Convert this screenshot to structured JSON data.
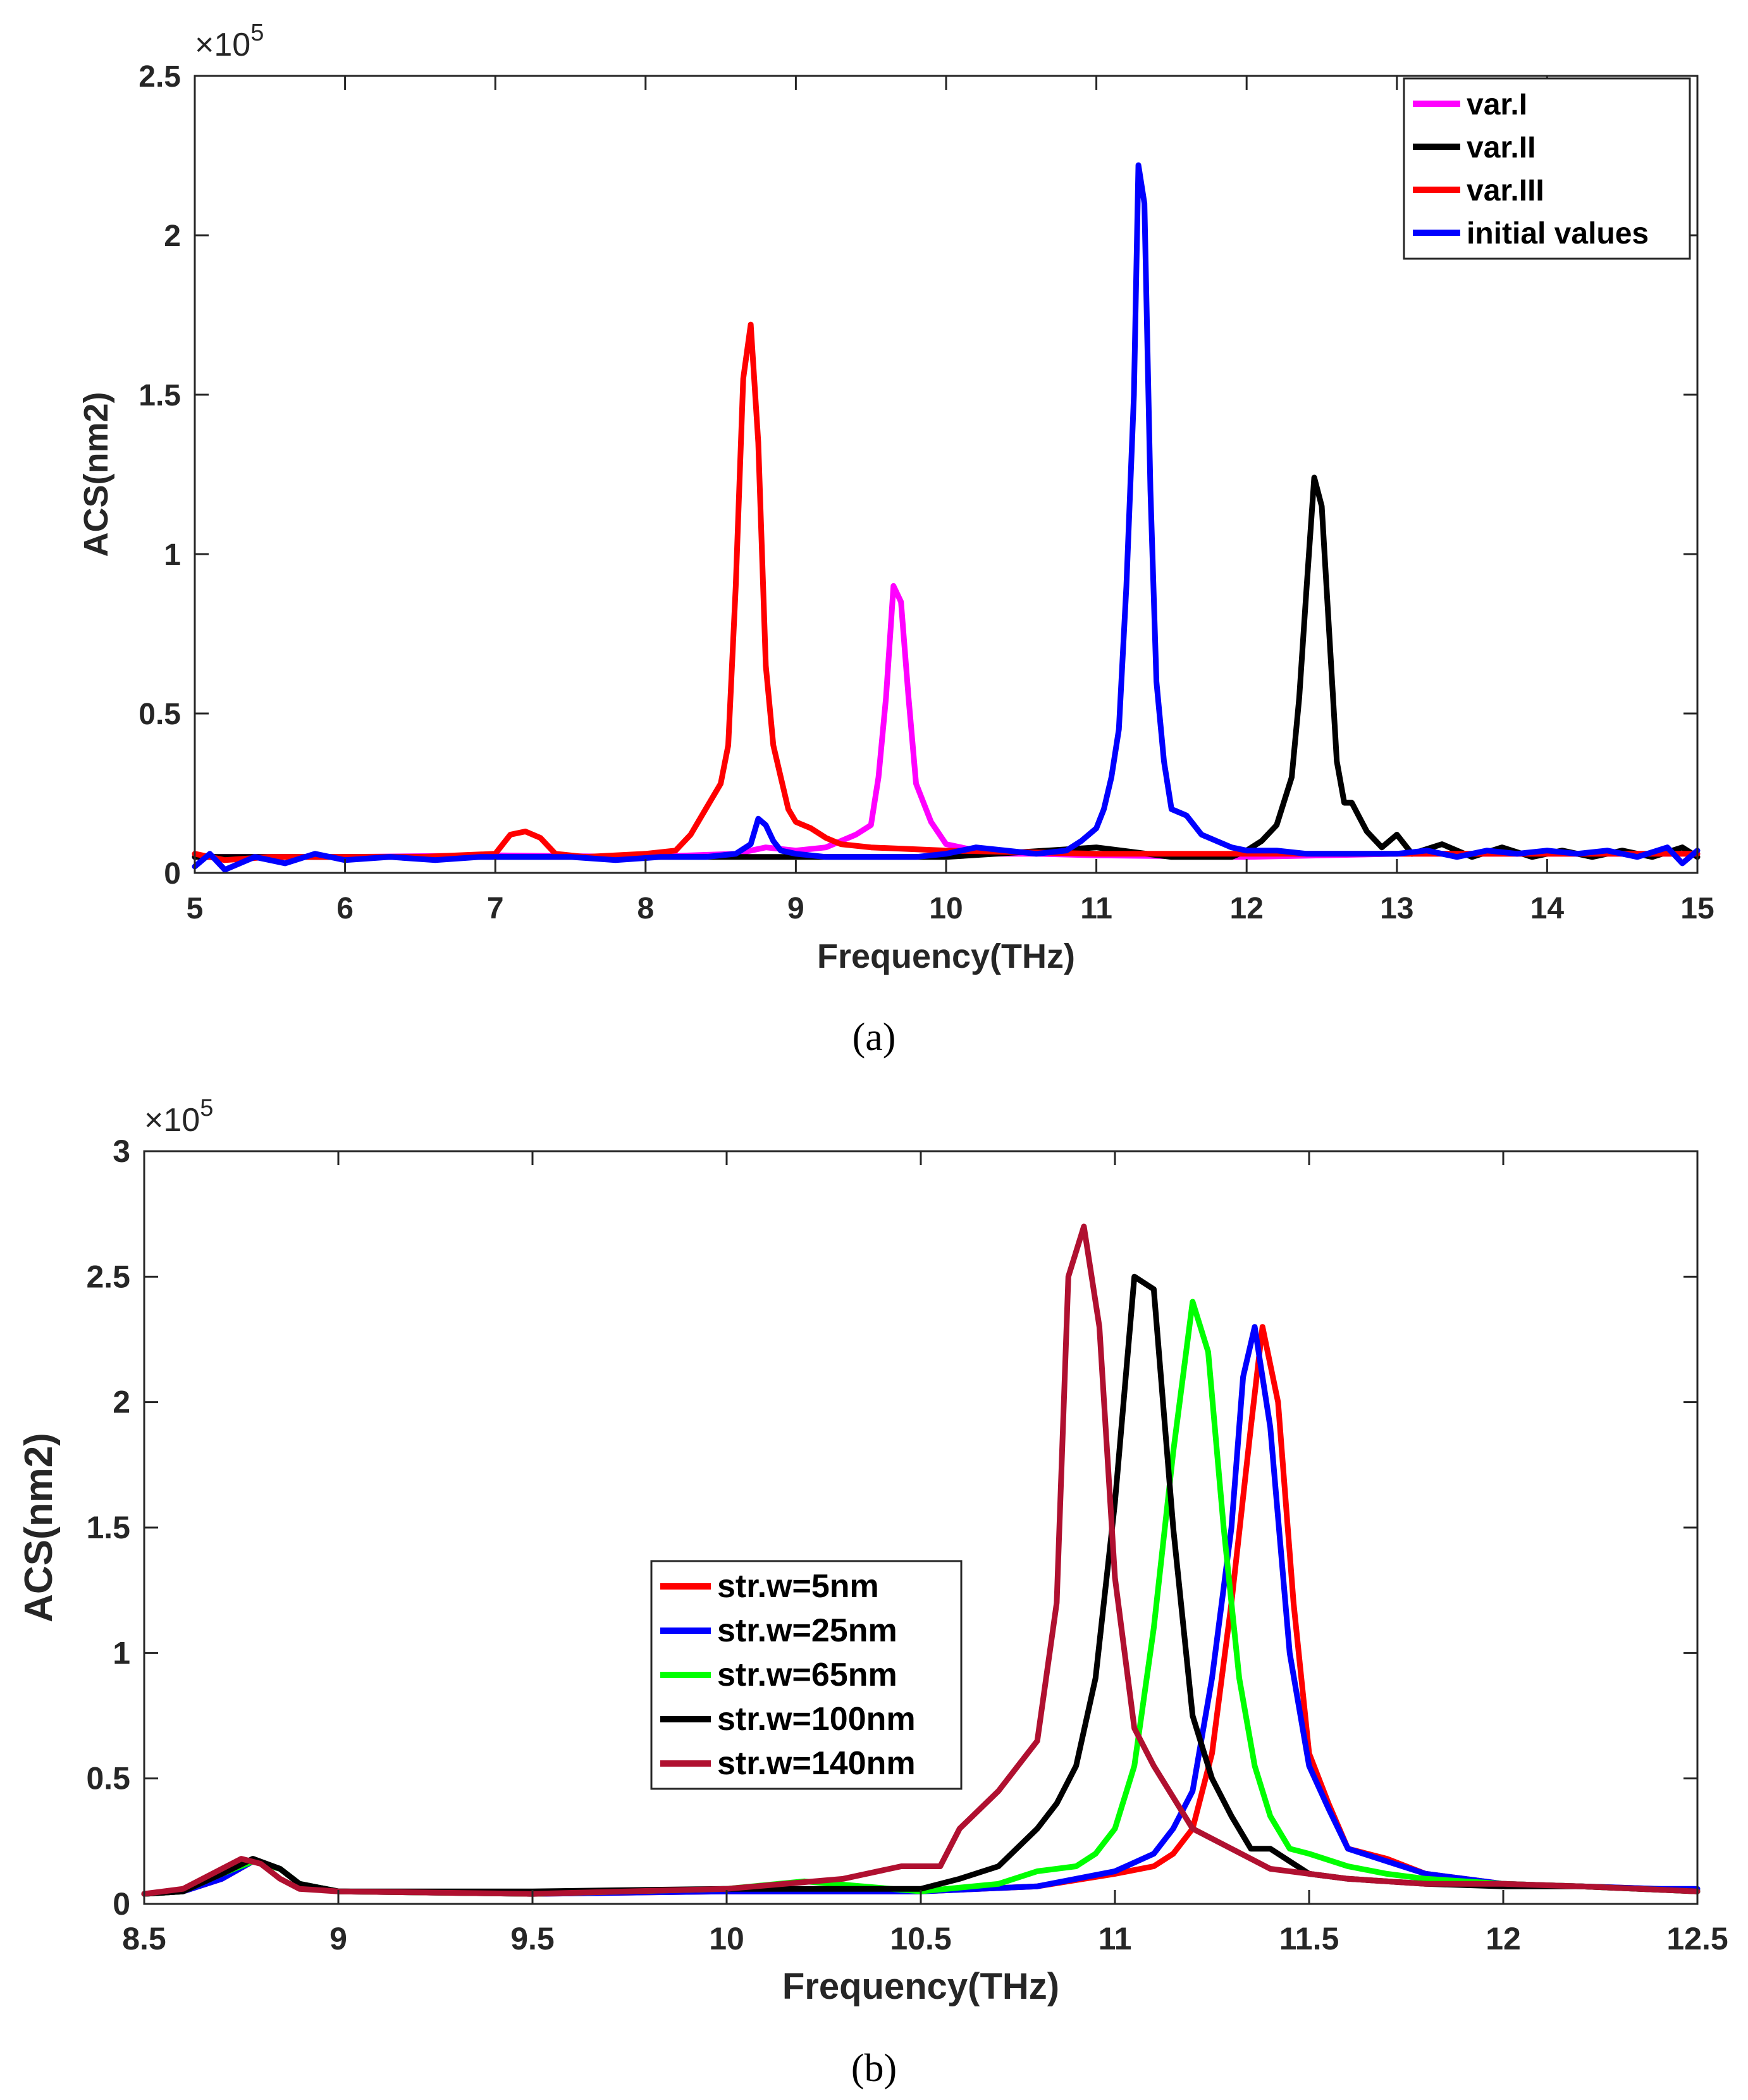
{
  "figure": {
    "caption_a": "(a)",
    "caption_b": "(b)"
  },
  "chart_data": [
    {
      "type": "line",
      "panel": "a",
      "title": "",
      "xlabel": "Frequency(THz)",
      "ylabel": "ACS(nm2)",
      "exponent_label": "×10",
      "exponent_power": "5",
      "xlim": [
        5,
        15
      ],
      "ylim": [
        0,
        2.5
      ],
      "xticks": [
        "5",
        "6",
        "7",
        "8",
        "9",
        "10",
        "11",
        "12",
        "13",
        "14",
        "15"
      ],
      "yticks": [
        "0",
        "0.5",
        "1",
        "1.5",
        "2",
        "2.5"
      ],
      "legend_position": "top-right",
      "series": [
        {
          "name": "var.I",
          "color": "#ff00ff",
          "x": [
            5.0,
            6.0,
            7.0,
            8.0,
            8.6,
            8.8,
            9.0,
            9.2,
            9.4,
            9.5,
            9.55,
            9.6,
            9.65,
            9.7,
            9.75,
            9.8,
            9.9,
            10.0,
            10.1,
            10.3,
            10.6,
            11.0,
            12.0,
            13.0,
            14.0,
            15.0
          ],
          "y": [
            0.05,
            0.05,
            0.055,
            0.05,
            0.06,
            0.08,
            0.07,
            0.08,
            0.12,
            0.15,
            0.3,
            0.55,
            0.9,
            0.85,
            0.55,
            0.28,
            0.16,
            0.09,
            0.08,
            0.06,
            0.06,
            0.055,
            0.05,
            0.06,
            0.06,
            0.06
          ]
        },
        {
          "name": "var.II",
          "color": "#000000",
          "x": [
            5.0,
            6.0,
            7.0,
            8.0,
            9.0,
            10.0,
            11.0,
            11.5,
            11.9,
            12.0,
            12.1,
            12.2,
            12.3,
            12.35,
            12.4,
            12.45,
            12.5,
            12.55,
            12.6,
            12.65,
            12.7,
            12.8,
            12.9,
            13.0,
            13.1,
            13.3,
            13.5,
            13.7,
            13.9,
            14.1,
            14.3,
            14.5,
            14.7,
            14.9,
            15.0
          ],
          "y": [
            0.05,
            0.05,
            0.05,
            0.05,
            0.05,
            0.05,
            0.08,
            0.05,
            0.05,
            0.07,
            0.1,
            0.15,
            0.3,
            0.55,
            0.9,
            1.24,
            1.15,
            0.75,
            0.35,
            0.22,
            0.22,
            0.13,
            0.08,
            0.12,
            0.06,
            0.09,
            0.05,
            0.08,
            0.05,
            0.07,
            0.05,
            0.07,
            0.05,
            0.08,
            0.05
          ]
        },
        {
          "name": "var.III",
          "color": "#ff0000",
          "x": [
            5.0,
            5.2,
            5.5,
            6.0,
            6.5,
            7.0,
            7.1,
            7.2,
            7.3,
            7.4,
            7.6,
            8.0,
            8.2,
            8.3,
            8.4,
            8.5,
            8.55,
            8.6,
            8.65,
            8.7,
            8.75,
            8.8,
            8.85,
            8.9,
            8.95,
            9.0,
            9.1,
            9.2,
            9.3,
            9.5,
            10.0,
            11.0,
            12.0,
            13.0,
            14.0,
            15.0
          ],
          "y": [
            0.06,
            0.04,
            0.05,
            0.05,
            0.05,
            0.06,
            0.12,
            0.13,
            0.11,
            0.06,
            0.05,
            0.06,
            0.07,
            0.12,
            0.2,
            0.28,
            0.4,
            0.9,
            1.55,
            1.72,
            1.35,
            0.65,
            0.4,
            0.3,
            0.2,
            0.16,
            0.14,
            0.11,
            0.09,
            0.08,
            0.07,
            0.06,
            0.06,
            0.06,
            0.06,
            0.06
          ]
        },
        {
          "name": "initial values",
          "color": "#0000ff",
          "x": [
            5.0,
            5.1,
            5.2,
            5.4,
            5.6,
            5.8,
            6.0,
            6.3,
            6.6,
            6.9,
            7.2,
            7.5,
            7.8,
            8.1,
            8.4,
            8.6,
            8.7,
            8.75,
            8.8,
            8.85,
            8.9,
            9.0,
            9.2,
            9.5,
            9.8,
            10.0,
            10.2,
            10.4,
            10.6,
            10.8,
            10.9,
            11.0,
            11.05,
            11.1,
            11.15,
            11.2,
            11.25,
            11.28,
            11.32,
            11.36,
            11.4,
            11.45,
            11.5,
            11.6,
            11.7,
            11.8,
            11.9,
            12.0,
            12.2,
            12.4,
            12.6,
            12.8,
            13.0,
            13.2,
            13.4,
            13.6,
            13.8,
            14.0,
            14.2,
            14.4,
            14.6,
            14.8,
            14.9,
            15.0
          ],
          "y": [
            0.02,
            0.06,
            0.01,
            0.05,
            0.03,
            0.06,
            0.04,
            0.05,
            0.04,
            0.05,
            0.05,
            0.05,
            0.04,
            0.05,
            0.05,
            0.06,
            0.09,
            0.17,
            0.15,
            0.1,
            0.07,
            0.06,
            0.05,
            0.05,
            0.05,
            0.06,
            0.08,
            0.07,
            0.06,
            0.07,
            0.1,
            0.14,
            0.2,
            0.3,
            0.45,
            0.9,
            1.5,
            2.22,
            2.1,
            1.2,
            0.6,
            0.35,
            0.2,
            0.18,
            0.12,
            0.1,
            0.08,
            0.07,
            0.07,
            0.06,
            0.06,
            0.06,
            0.06,
            0.07,
            0.05,
            0.07,
            0.06,
            0.07,
            0.06,
            0.07,
            0.05,
            0.08,
            0.03,
            0.07
          ]
        }
      ]
    },
    {
      "type": "line",
      "panel": "b",
      "title": "",
      "xlabel": "Frequency(THz)",
      "ylabel": "ACS(nm2)",
      "exponent_label": "×10",
      "exponent_power": "5",
      "xlim": [
        8.5,
        12.5
      ],
      "ylim": [
        0,
        3
      ],
      "xticks": [
        "8.5",
        "9",
        "9.5",
        "10",
        "10.5",
        "11",
        "11.5",
        "12",
        "12.5"
      ],
      "yticks": [
        "0",
        "0.5",
        "1",
        "1.5",
        "2",
        "2.5",
        "3"
      ],
      "legend_position": "center-left",
      "series": [
        {
          "name": "str.w=5nm",
          "color": "#ff0000",
          "x": [
            8.5,
            8.6,
            8.7,
            8.78,
            8.85,
            8.9,
            9.0,
            9.5,
            10.0,
            10.5,
            10.8,
            11.0,
            11.1,
            11.15,
            11.2,
            11.25,
            11.3,
            11.35,
            11.38,
            11.42,
            11.46,
            11.5,
            11.55,
            11.6,
            11.7,
            11.8,
            11.9,
            12.0,
            12.2,
            12.4,
            12.5
          ],
          "y": [
            0.04,
            0.05,
            0.1,
            0.17,
            0.14,
            0.08,
            0.05,
            0.04,
            0.05,
            0.05,
            0.07,
            0.12,
            0.15,
            0.2,
            0.3,
            0.6,
            1.2,
            1.9,
            2.3,
            2.0,
            1.2,
            0.6,
            0.4,
            0.22,
            0.18,
            0.12,
            0.1,
            0.08,
            0.07,
            0.06,
            0.05
          ]
        },
        {
          "name": "str.w=25nm",
          "color": "#0000ff",
          "x": [
            8.5,
            8.6,
            8.7,
            8.78,
            8.85,
            8.9,
            9.0,
            9.5,
            10.0,
            10.5,
            10.8,
            11.0,
            11.1,
            11.15,
            11.2,
            11.25,
            11.3,
            11.33,
            11.36,
            11.4,
            11.45,
            11.5,
            11.55,
            11.6,
            11.7,
            11.8,
            11.9,
            12.0,
            12.2,
            12.4,
            12.5
          ],
          "y": [
            0.04,
            0.05,
            0.1,
            0.17,
            0.14,
            0.08,
            0.05,
            0.04,
            0.05,
            0.05,
            0.07,
            0.13,
            0.2,
            0.3,
            0.45,
            0.9,
            1.5,
            2.1,
            2.3,
            1.9,
            1.0,
            0.55,
            0.38,
            0.22,
            0.17,
            0.12,
            0.1,
            0.08,
            0.07,
            0.06,
            0.06
          ]
        },
        {
          "name": "str.w=65nm",
          "color": "#00ff00",
          "x": [
            8.5,
            8.6,
            8.7,
            8.78,
            8.85,
            8.9,
            9.0,
            9.5,
            10.0,
            10.2,
            10.5,
            10.7,
            10.8,
            10.9,
            10.95,
            11.0,
            11.05,
            11.1,
            11.15,
            11.2,
            11.24,
            11.28,
            11.32,
            11.36,
            11.4,
            11.45,
            11.5,
            11.6,
            11.7,
            11.8,
            12.0,
            12.2,
            12.5
          ],
          "y": [
            0.04,
            0.05,
            0.12,
            0.17,
            0.14,
            0.08,
            0.05,
            0.04,
            0.06,
            0.09,
            0.05,
            0.08,
            0.13,
            0.15,
            0.2,
            0.3,
            0.55,
            1.1,
            1.8,
            2.4,
            2.2,
            1.5,
            0.9,
            0.55,
            0.35,
            0.22,
            0.2,
            0.15,
            0.12,
            0.1,
            0.08,
            0.07,
            0.05
          ]
        },
        {
          "name": "str.w=100nm",
          "color": "#000000",
          "x": [
            8.5,
            8.6,
            8.7,
            8.78,
            8.85,
            8.9,
            9.0,
            9.5,
            10.0,
            10.5,
            10.6,
            10.7,
            10.8,
            10.85,
            10.9,
            10.95,
            11.0,
            11.05,
            11.1,
            11.15,
            11.2,
            11.25,
            11.3,
            11.35,
            11.4,
            11.5,
            11.6,
            11.8,
            12.0,
            12.2,
            12.5
          ],
          "y": [
            0.04,
            0.05,
            0.12,
            0.18,
            0.14,
            0.08,
            0.05,
            0.05,
            0.06,
            0.06,
            0.1,
            0.15,
            0.3,
            0.4,
            0.55,
            0.9,
            1.6,
            2.5,
            2.45,
            1.5,
            0.75,
            0.5,
            0.35,
            0.22,
            0.22,
            0.12,
            0.1,
            0.08,
            0.07,
            0.07,
            0.05
          ]
        },
        {
          "name": "str.w=140nm",
          "color": "#b01030",
          "x": [
            8.5,
            8.6,
            8.7,
            8.75,
            8.8,
            8.85,
            8.9,
            9.0,
            9.5,
            10.0,
            10.3,
            10.45,
            10.55,
            10.6,
            10.7,
            10.8,
            10.85,
            10.88,
            10.92,
            10.96,
            11.0,
            11.05,
            11.1,
            11.2,
            11.3,
            11.4,
            11.5,
            11.6,
            11.8,
            12.0,
            12.2,
            12.5
          ],
          "y": [
            0.04,
            0.06,
            0.14,
            0.18,
            0.16,
            0.1,
            0.06,
            0.05,
            0.04,
            0.06,
            0.1,
            0.15,
            0.15,
            0.3,
            0.45,
            0.65,
            1.2,
            2.5,
            2.7,
            2.3,
            1.3,
            0.7,
            0.55,
            0.3,
            0.22,
            0.14,
            0.12,
            0.1,
            0.08,
            0.08,
            0.07,
            0.05
          ]
        }
      ]
    }
  ]
}
